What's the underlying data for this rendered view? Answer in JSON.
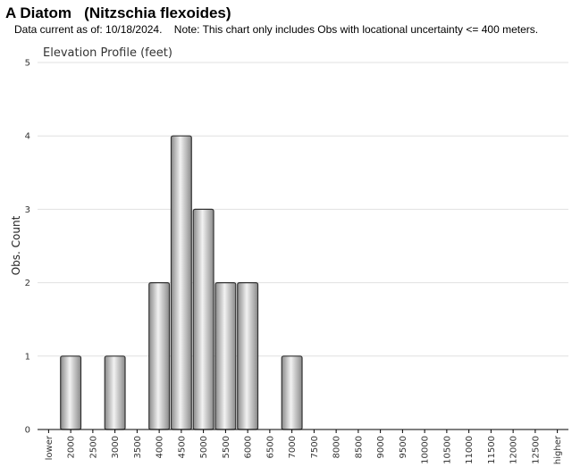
{
  "header": {
    "title": "A Diatom   (Nitzschia flexoides)",
    "subtitle": "Data current as of: 10/18/2024.    Note: This chart only includes Obs with locational uncertainty <= 400 meters."
  },
  "chart_data": {
    "type": "bar",
    "title": "Elevation Profile (feet)",
    "xlabel": "",
    "ylabel": "Obs. Count",
    "ylim": [
      0,
      5
    ],
    "yticks": [
      0,
      1,
      2,
      3,
      4,
      5
    ],
    "grid": true,
    "categories": [
      "lower",
      "2000",
      "2500",
      "3000",
      "3500",
      "4000",
      "4500",
      "5000",
      "5500",
      "6000",
      "6500",
      "7000",
      "7500",
      "8000",
      "8500",
      "9000",
      "9500",
      "10000",
      "10500",
      "11000",
      "11500",
      "12000",
      "12500",
      "higher"
    ],
    "values": [
      0,
      1,
      0,
      1,
      0,
      2,
      4,
      3,
      2,
      2,
      0,
      1,
      0,
      0,
      0,
      0,
      0,
      0,
      0,
      0,
      0,
      0,
      0,
      0
    ],
    "colors": {
      "bar_light": "#f2f2f2",
      "bar_dark": "#8a8a8a",
      "bar_stroke": "#333333",
      "grid": "#e0e0e0",
      "axis": "#000000"
    }
  }
}
